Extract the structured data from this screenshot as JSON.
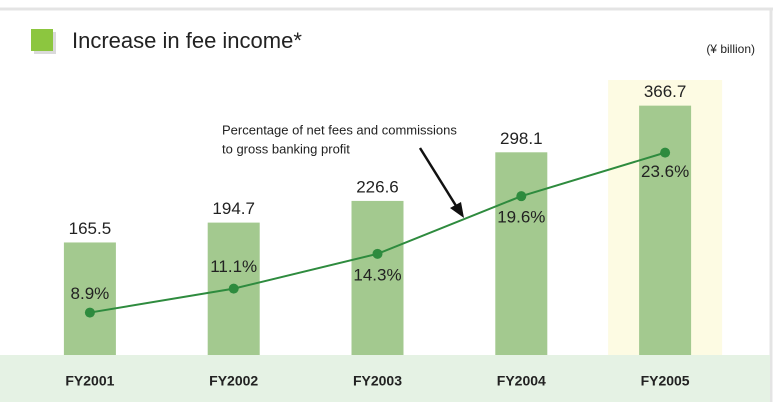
{
  "chart_data": {
    "type": "bar",
    "title": "Increase in fee income*",
    "unit_label": "(¥ billion)",
    "annotation": [
      "Percentage of net fees and commissions",
      "to gross banking profit"
    ],
    "categories": [
      "FY2001",
      "FY2002",
      "FY2003",
      "FY2004",
      "FY2005"
    ],
    "highlight": "FY2005",
    "highlight_color": "#fdfbe3",
    "series": [
      {
        "type": "bar",
        "color": "#a3c98f",
        "values": [
          165.5,
          194.7,
          226.6,
          298.1,
          366.7
        ]
      },
      {
        "type": "line",
        "axis": "y2",
        "color": "#2e8b3e",
        "values": [
          8.9,
          11.1,
          14.3,
          19.6,
          23.6
        ],
        "value_labels": [
          "8.9%",
          "11.1%",
          "14.3%",
          "19.6%",
          "23.6%"
        ]
      }
    ],
    "ylim": [
      0,
      400
    ],
    "y2lim": [
      5,
      30
    ]
  }
}
